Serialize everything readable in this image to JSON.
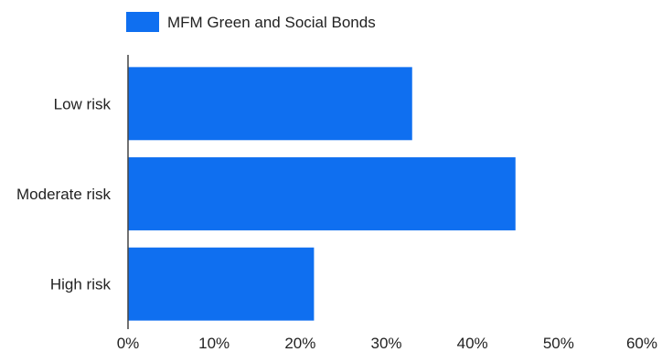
{
  "chart_data": {
    "type": "bar",
    "orientation": "horizontal",
    "categories": [
      "Low risk",
      "Moderate risk",
      "High risk"
    ],
    "series": [
      {
        "name": "MFM Green and Social Bonds",
        "values": [
          33,
          45,
          21.6
        ],
        "color": "#0f6ff0"
      }
    ],
    "xlim": [
      0,
      60
    ],
    "x_ticks": [
      "0%",
      "10%",
      "20%",
      "30%",
      "40%",
      "50%",
      "60%"
    ],
    "x_tick_values": [
      0,
      10,
      20,
      30,
      40,
      50,
      60
    ],
    "legend_position": "top-left",
    "grid": false
  }
}
